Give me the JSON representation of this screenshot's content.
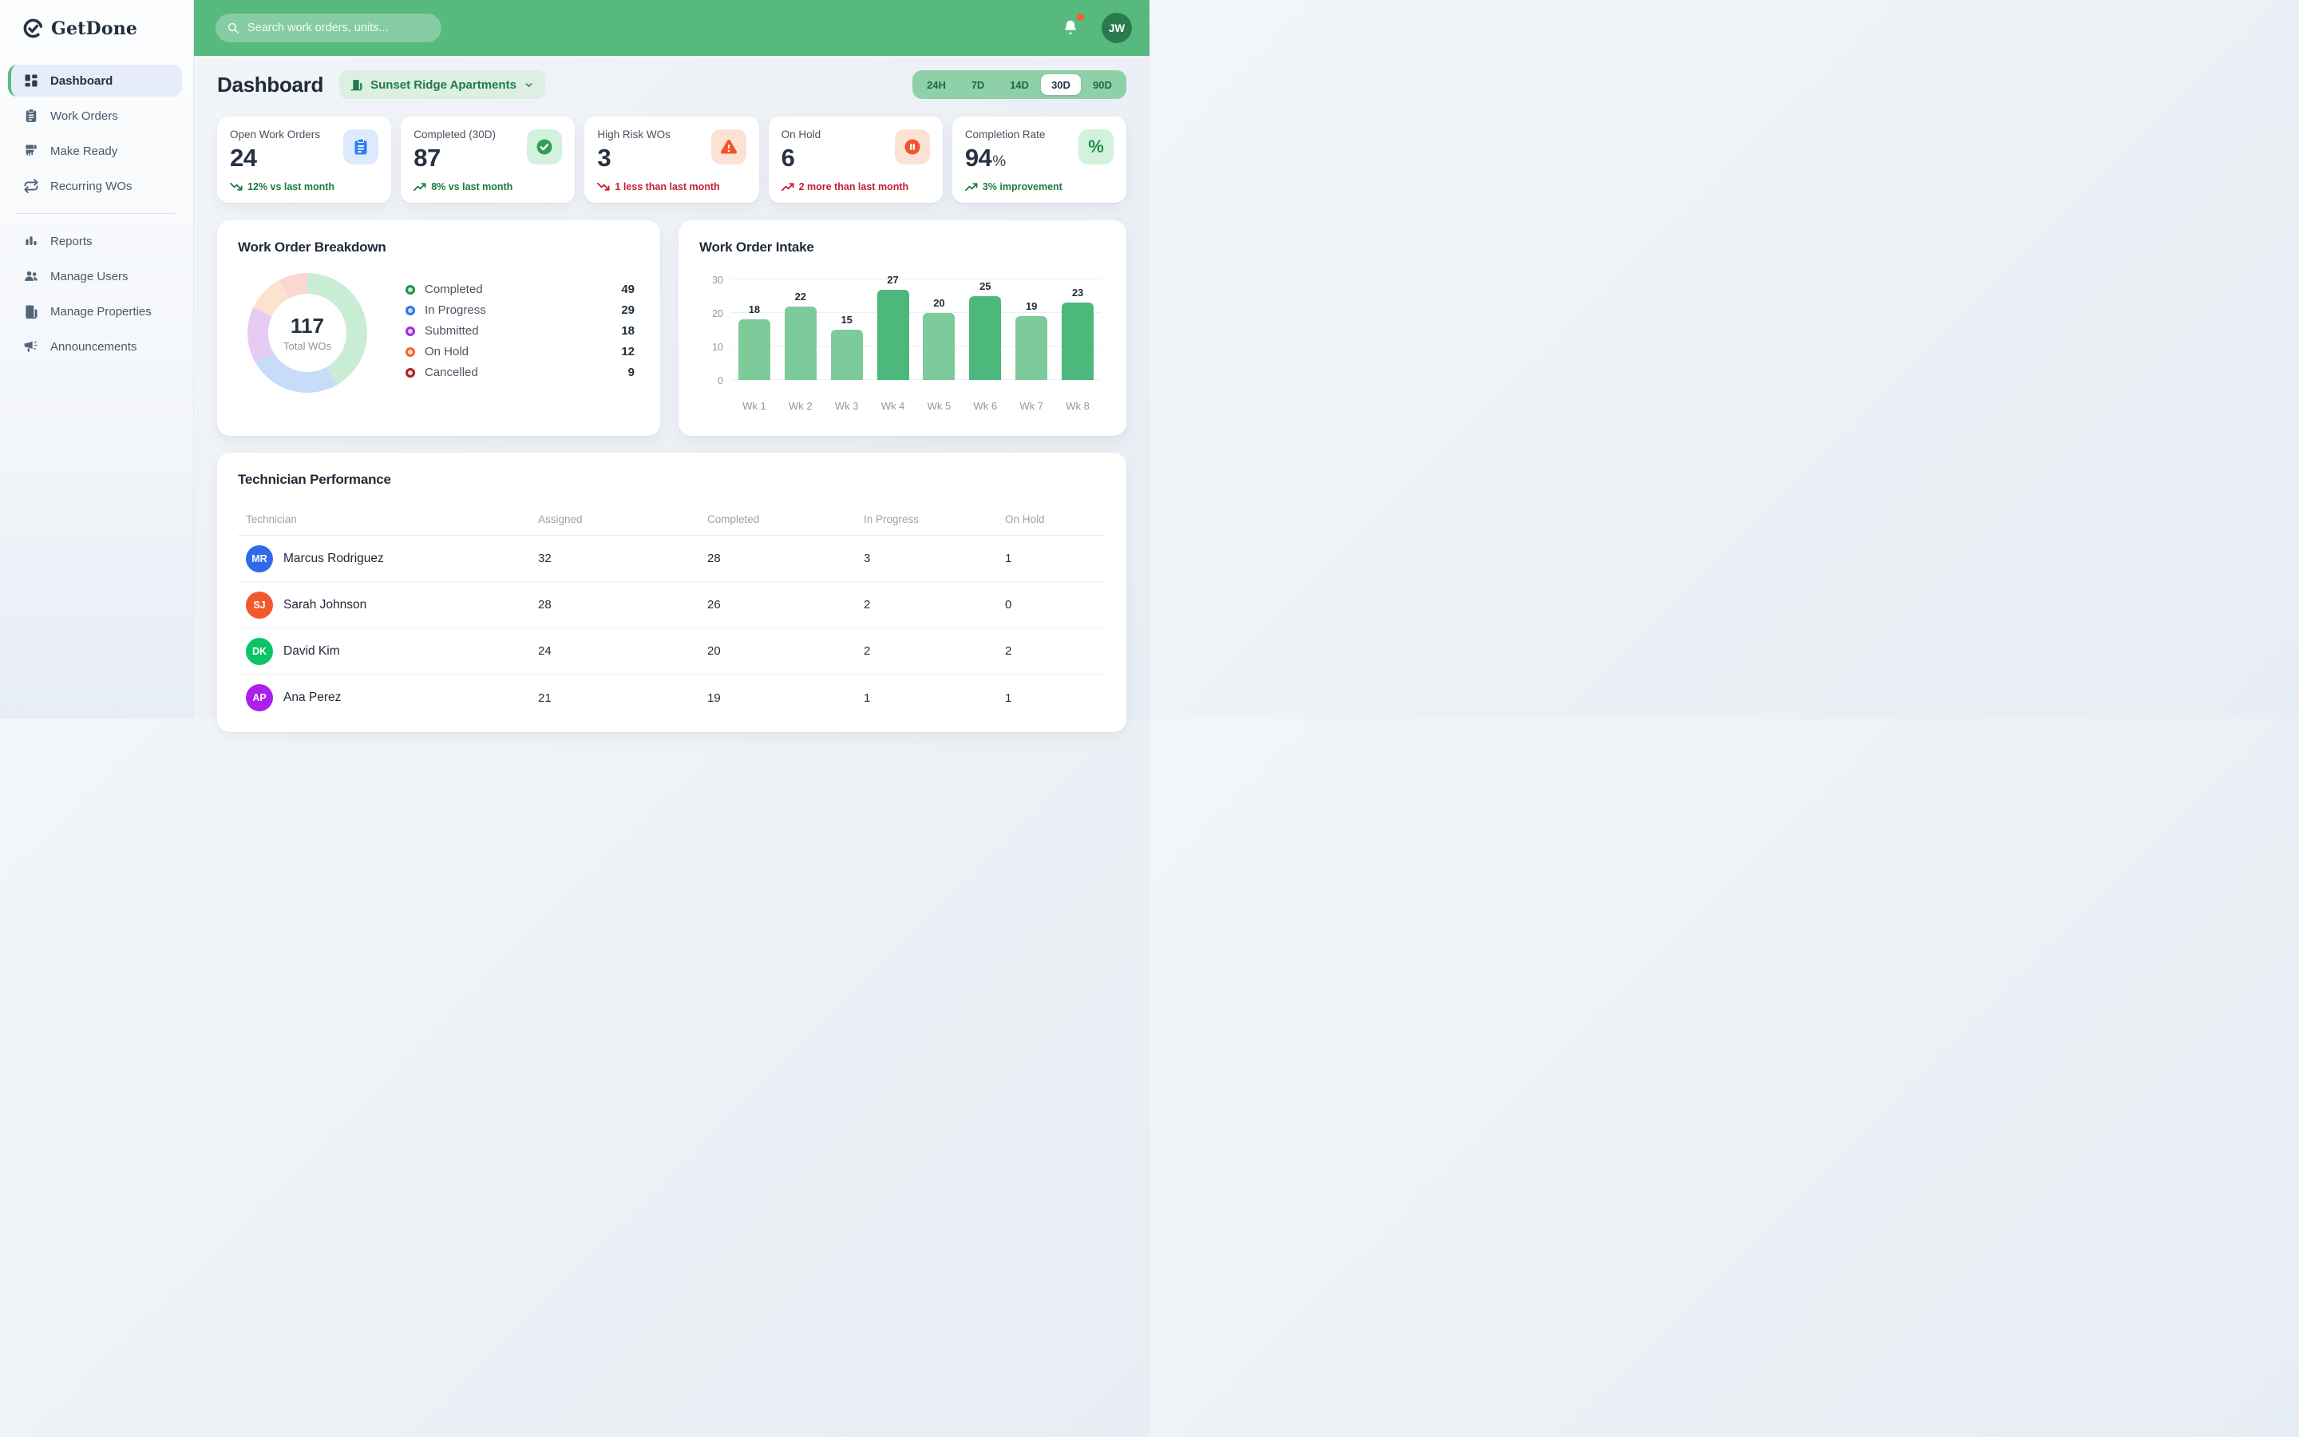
{
  "colors": {
    "brand_green": "#57b97e",
    "accent_green": "#58bd83",
    "notification_dot": "#fb5a2e"
  },
  "brand": {
    "name": "GetDone"
  },
  "topbar": {
    "search_placeholder": "Search work orders, units...",
    "avatar_initials": "JW"
  },
  "sidebar": {
    "items": [
      {
        "label": "Dashboard",
        "icon": "dashboard",
        "active": true
      },
      {
        "label": "Work Orders",
        "icon": "clipboard"
      },
      {
        "label": "Make Ready",
        "icon": "brush"
      },
      {
        "label": "Recurring WOs",
        "icon": "repeat"
      },
      {
        "label": "Reports",
        "icon": "bar-chart",
        "divider_before": true
      },
      {
        "label": "Manage Users",
        "icon": "users"
      },
      {
        "label": "Manage Properties",
        "icon": "building"
      },
      {
        "label": "Announcements",
        "icon": "megaphone"
      }
    ]
  },
  "page": {
    "title": "Dashboard",
    "property_selector": {
      "label": "Sunset Ridge Apartments"
    }
  },
  "time_ranges": {
    "options": [
      "24H",
      "7D",
      "14D",
      "30D",
      "90D"
    ],
    "active": "30D"
  },
  "kpis": [
    {
      "label": "Open Work Orders",
      "value": "24",
      "value_suffix": "",
      "icon": "clipboard",
      "icon_color": "#2f7ff0",
      "icon_bg": "#dbeafc",
      "trend_dir": "down",
      "trend_color": "#1e7b41",
      "trend_text": "12% vs last month"
    },
    {
      "label": "Completed (30D)",
      "value": "87",
      "value_suffix": "",
      "icon": "check-circle",
      "icon_color": "#2f9e57",
      "icon_bg": "#d3f2de",
      "trend_dir": "up",
      "trend_color": "#1e7b41",
      "trend_text": "8% vs last month"
    },
    {
      "label": "High Risk WOs",
      "value": "3",
      "value_suffix": "",
      "icon": "warning",
      "icon_color": "#f0552b",
      "icon_bg": "#fbe2d3",
      "trend_dir": "down",
      "trend_color": "#c2202e",
      "trend_text": "1 less than last month"
    },
    {
      "label": "On Hold",
      "value": "6",
      "value_suffix": "",
      "icon": "pause-circle",
      "icon_color": "#f0552b",
      "icon_bg": "#fbe2d3",
      "trend_dir": "up",
      "trend_color": "#c2202e",
      "trend_text": "2 more than last month"
    },
    {
      "label": "Completion Rate",
      "value": "94",
      "value_suffix": "%",
      "icon": "percent",
      "icon_color": "#1f8d4d",
      "icon_bg": "#d3f2de",
      "trend_dir": "up",
      "trend_color": "#1e7b41",
      "trend_text": "3% improvement"
    }
  ],
  "chart_data": [
    {
      "type": "pie",
      "title": "Work Order Breakdown",
      "center_value": "117",
      "center_label": "Total WOs",
      "segments": [
        {
          "label": "Completed",
          "value": 49,
          "color": "#c9edd4",
          "legend_color": "#1c9447"
        },
        {
          "label": "In Progress",
          "value": 29,
          "color": "#c7dcf8",
          "legend_color": "#3174e4"
        },
        {
          "label": "Submitted",
          "value": 18,
          "color": "#e6ccf4",
          "legend_color": "#9c2fe0"
        },
        {
          "label": "On Hold",
          "value": 12,
          "color": "#fce3cf",
          "legend_color": "#f0662f"
        },
        {
          "label": "Cancelled",
          "value": 9,
          "color": "#f9d8d3",
          "legend_color": "#ae1e2c"
        }
      ]
    },
    {
      "type": "bar",
      "title": "Work Order Intake",
      "categories": [
        "Wk 1",
        "Wk 2",
        "Wk 3",
        "Wk 4",
        "Wk 5",
        "Wk 6",
        "Wk 7",
        "Wk 8"
      ],
      "values": [
        18,
        22,
        15,
        27,
        20,
        25,
        19,
        23
      ],
      "emphasis": [
        false,
        false,
        false,
        true,
        false,
        true,
        false,
        true
      ],
      "ylim": [
        0,
        30
      ],
      "yticks": [
        0,
        10,
        20,
        30
      ],
      "bar_color": "#7dcb9a",
      "bar_color_emphasis": "#4db87c",
      "xlabel": "",
      "ylabel": "",
      "grid": true,
      "legend": "none"
    }
  ],
  "technician_table": {
    "title": "Technician Performance",
    "columns": [
      "Technician",
      "Assigned",
      "Completed",
      "In Progress",
      "On Hold"
    ],
    "rows": [
      {
        "initials": "MR",
        "avatar_color": "#2f6be8",
        "name": "Marcus Rodriguez",
        "assigned": "32",
        "completed": "28",
        "in_progress": "3",
        "on_hold": "1"
      },
      {
        "initials": "SJ",
        "avatar_color": "#f0592b",
        "name": "Sarah Johnson",
        "assigned": "28",
        "completed": "26",
        "in_progress": "2",
        "on_hold": "0"
      },
      {
        "initials": "DK",
        "avatar_color": "#0cc465",
        "name": "David Kim",
        "assigned": "24",
        "completed": "20",
        "in_progress": "2",
        "on_hold": "2"
      },
      {
        "initials": "AP",
        "avatar_color": "#ad1feb",
        "name": "Ana Perez",
        "assigned": "21",
        "completed": "19",
        "in_progress": "1",
        "on_hold": "1"
      }
    ]
  }
}
